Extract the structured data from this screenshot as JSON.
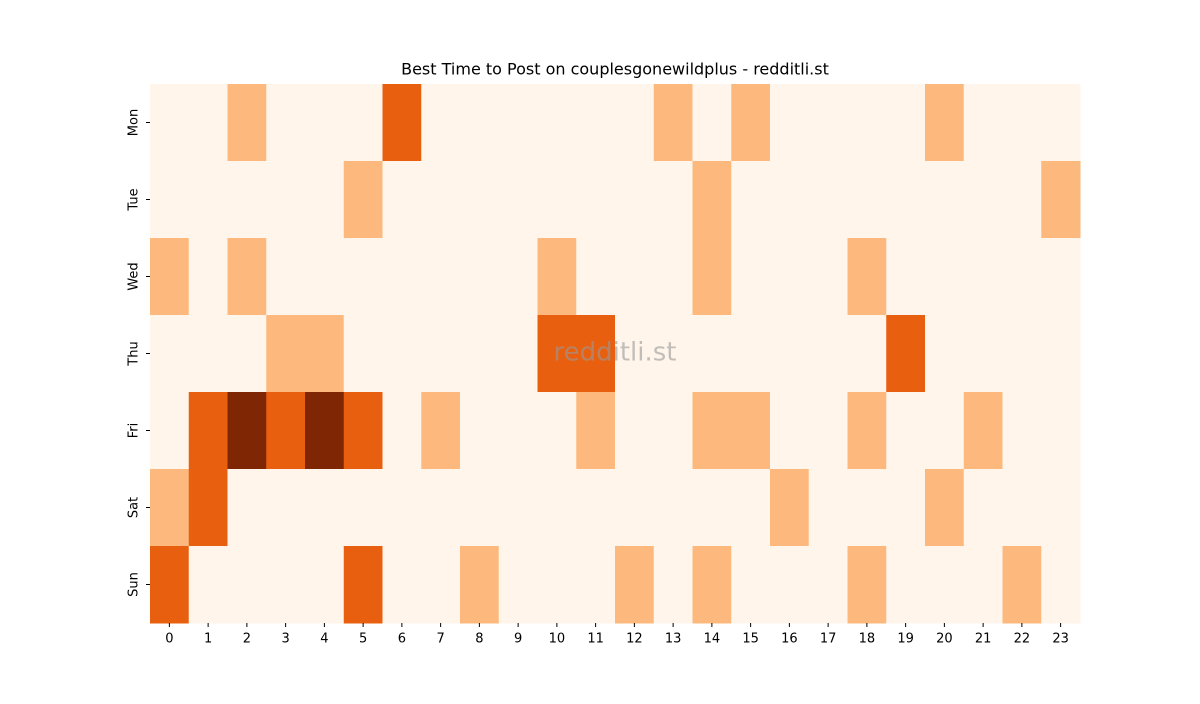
{
  "chart_data": {
    "type": "heatmap",
    "title": "Best Time to Post on couplesgonewildplus - redditli.st",
    "watermark": "redditli.st",
    "x": [
      "0",
      "1",
      "2",
      "3",
      "4",
      "5",
      "6",
      "7",
      "8",
      "9",
      "10",
      "11",
      "12",
      "13",
      "14",
      "15",
      "16",
      "17",
      "18",
      "19",
      "20",
      "21",
      "22",
      "23"
    ],
    "y": [
      "Mon",
      "Tue",
      "Wed",
      "Thu",
      "Fri",
      "Sat",
      "Sun"
    ],
    "values": [
      [
        0,
        0,
        1,
        0,
        0,
        0,
        2,
        0,
        0,
        0,
        0,
        0,
        0,
        1,
        0,
        1,
        0,
        0,
        0,
        0,
        1,
        0,
        0,
        0
      ],
      [
        0,
        0,
        0,
        0,
        0,
        1,
        0,
        0,
        0,
        0,
        0,
        0,
        0,
        0,
        1,
        0,
        0,
        0,
        0,
        0,
        0,
        0,
        0,
        1
      ],
      [
        1,
        0,
        1,
        0,
        0,
        0,
        0,
        0,
        0,
        0,
        1,
        0,
        0,
        0,
        1,
        0,
        0,
        0,
        1,
        0,
        0,
        0,
        0,
        0
      ],
      [
        0,
        0,
        0,
        1,
        1,
        0,
        0,
        0,
        0,
        0,
        2,
        2,
        0,
        0,
        0,
        0,
        0,
        0,
        0,
        2,
        0,
        0,
        0,
        0
      ],
      [
        0,
        2,
        3,
        2,
        3,
        2,
        0,
        1,
        0,
        0,
        0,
        1,
        0,
        0,
        1,
        1,
        0,
        0,
        1,
        0,
        0,
        1,
        0,
        0
      ],
      [
        1,
        2,
        0,
        0,
        0,
        0,
        0,
        0,
        0,
        0,
        0,
        0,
        0,
        0,
        0,
        0,
        1,
        0,
        0,
        0,
        1,
        0,
        0,
        0
      ],
      [
        2,
        0,
        0,
        0,
        0,
        2,
        0,
        0,
        1,
        0,
        0,
        0,
        1,
        0,
        1,
        0,
        0,
        0,
        1,
        0,
        0,
        0,
        1,
        0
      ]
    ],
    "colors": [
      "#fff5eb",
      "#fdb97d",
      "#e8600f",
      "#7f2704"
    ]
  }
}
